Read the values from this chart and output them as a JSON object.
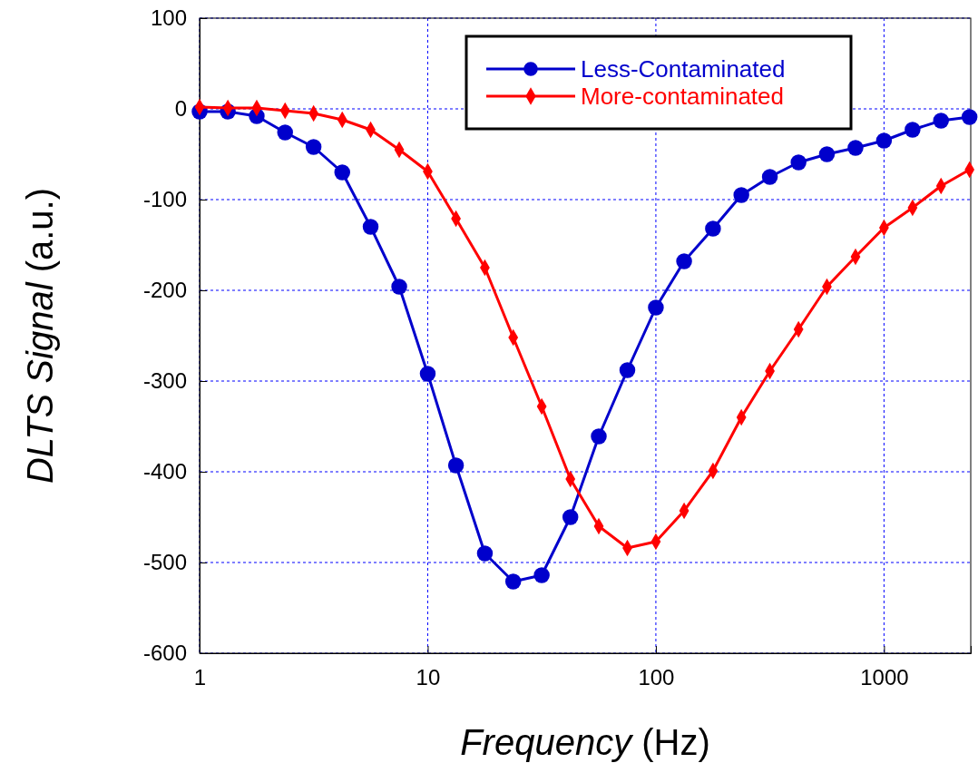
{
  "chart_data": {
    "type": "line",
    "xlabel": "Frequency (Hz)",
    "ylabel": "DLTS Signal (a.u.)",
    "log": "x",
    "x": [
      1,
      1.33,
      1.78,
      2.37,
      3.16,
      4.22,
      5.62,
      7.5,
      10,
      13.3,
      17.8,
      23.7,
      31.6,
      42.2,
      56.2,
      75,
      100,
      133,
      178,
      237,
      316,
      422,
      562,
      750,
      1000,
      1334,
      1778,
      2371
    ],
    "xlim": [
      1,
      2400
    ],
    "xticks": [
      1,
      10,
      100,
      1000
    ],
    "ylim": [
      -600,
      100
    ],
    "yticks": [
      -600,
      -500,
      -400,
      -300,
      -200,
      -100,
      0,
      100
    ],
    "grid": true,
    "legend": "top right",
    "line_style": "solid",
    "series": [
      {
        "name": "Less-Contaminated",
        "color": "#0000cc",
        "marker": "circle",
        "values": [
          -3,
          -3,
          -8,
          -26,
          -42,
          -70,
          -130,
          -196,
          -292,
          -393,
          -490,
          -521,
          -514,
          -450,
          -361,
          -288,
          -219,
          -168,
          -132,
          -95,
          -75,
          -59,
          -50,
          -43,
          -35,
          -23,
          -13,
          -9
        ]
      },
      {
        "name": "More-contaminated",
        "color": "#ff0000",
        "marker": "diamond",
        "values": [
          2,
          1,
          1,
          -2,
          -5,
          -12,
          -23,
          -45,
          -69,
          -121,
          -175,
          -252,
          -328,
          -408,
          -460,
          -484,
          -477,
          -443,
          -399,
          -340,
          -289,
          -243,
          -196,
          -163,
          -131,
          -109,
          -85,
          -67
        ]
      }
    ]
  }
}
